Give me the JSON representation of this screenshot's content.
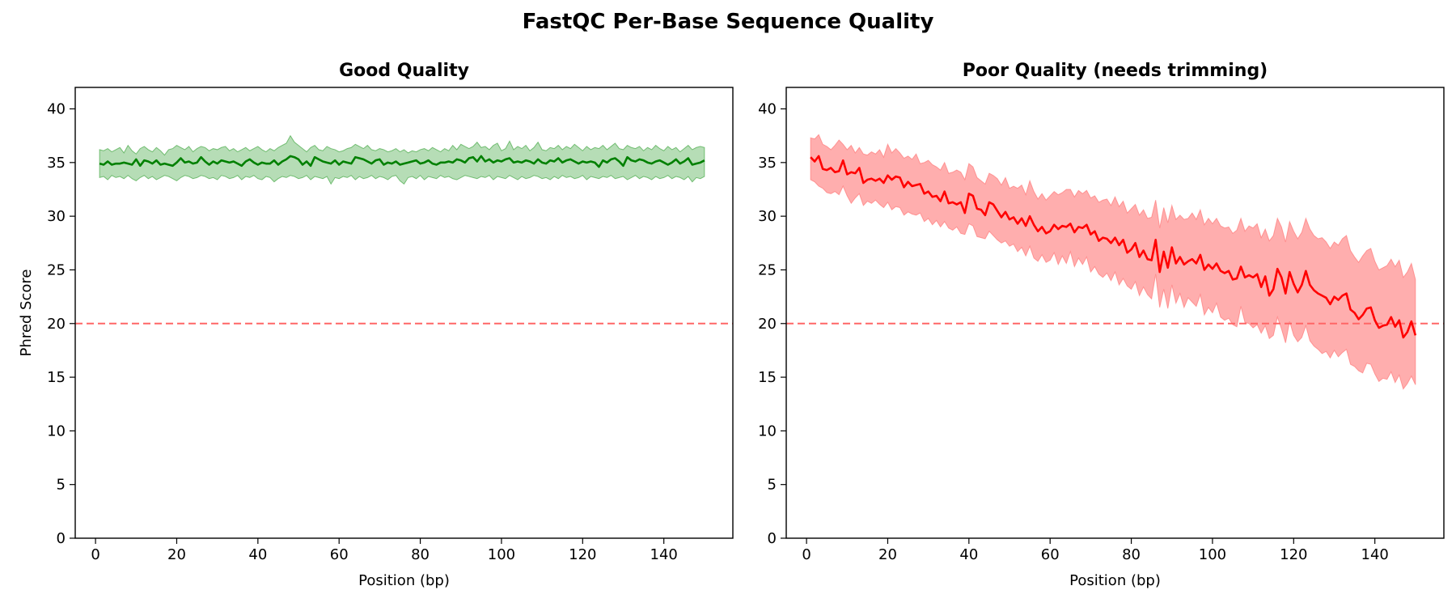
{
  "figure": {
    "suptitle": "FastQC Per-Base Sequence Quality"
  },
  "chart_data": [
    {
      "type": "line",
      "title": "Good Quality",
      "xlabel": "Position (bp)",
      "ylabel": "Phred Score",
      "xlim": [
        -5,
        157
      ],
      "ylim": [
        0,
        42
      ],
      "xticks": [
        0,
        20,
        40,
        60,
        80,
        100,
        120,
        140
      ],
      "yticks": [
        0,
        5,
        10,
        15,
        20,
        25,
        30,
        35,
        40
      ],
      "line_color": "#008000",
      "band_color": "#2e9e2e",
      "band_opacity": 0.35,
      "threshold": {
        "value": 20,
        "color": "#ff6666",
        "style": "dashed"
      },
      "series": [
        {
          "name": "mean",
          "x_start": 1,
          "x_step": 1,
          "values": [
            34.9,
            34.8,
            35.1,
            34.8,
            34.9,
            34.9,
            35.0,
            34.9,
            34.8,
            35.3,
            34.7,
            35.2,
            35.1,
            34.9,
            35.2,
            34.8,
            34.9,
            34.8,
            34.7,
            35.0,
            35.4,
            35.0,
            35.1,
            34.9,
            35.0,
            35.5,
            35.1,
            34.8,
            35.1,
            34.9,
            35.2,
            35.1,
            35.0,
            35.1,
            34.9,
            34.7,
            35.1,
            35.3,
            35.0,
            34.8,
            35.0,
            34.9,
            34.9,
            35.2,
            34.8,
            35.1,
            35.3,
            35.6,
            35.5,
            35.3,
            34.8,
            35.1,
            34.7,
            35.5,
            35.3,
            35.1,
            35.0,
            34.9,
            35.2,
            34.8,
            35.1,
            35.0,
            34.9,
            35.5,
            35.4,
            35.3,
            35.1,
            34.9,
            35.2,
            35.3,
            34.8,
            35.0,
            34.9,
            35.1,
            34.8,
            34.9,
            35.0,
            35.1,
            35.2,
            34.9,
            35.0,
            35.2,
            34.9,
            34.8,
            35.0,
            35.0,
            35.1,
            35.0,
            35.3,
            35.2,
            35.0,
            35.4,
            35.5,
            35.1,
            35.6,
            35.1,
            35.3,
            35.0,
            35.2,
            35.1,
            35.3,
            35.4,
            35.0,
            35.1,
            35.0,
            35.2,
            35.1,
            34.9,
            35.3,
            35.0,
            34.9,
            35.2,
            35.1,
            35.4,
            35.0,
            35.2,
            35.3,
            35.1,
            34.9,
            35.1,
            35.0,
            35.1,
            35.0,
            34.6,
            35.2,
            35.0,
            35.3,
            35.4,
            35.1,
            34.7,
            35.5,
            35.2,
            35.1,
            35.3,
            35.2,
            35.0,
            34.9,
            35.1,
            35.2,
            35.0,
            34.8,
            35.0,
            35.3,
            34.9,
            35.1,
            35.4,
            34.8,
            34.9,
            35.0,
            35.2
          ]
        },
        {
          "name": "lower",
          "x_start": 1,
          "x_step": 1,
          "values": [
            33.6,
            33.7,
            33.4,
            33.8,
            33.6,
            33.7,
            33.5,
            33.8,
            33.5,
            33.3,
            33.6,
            33.8,
            33.5,
            33.7,
            33.4,
            33.6,
            33.8,
            33.7,
            33.5,
            33.3,
            33.6,
            33.8,
            33.7,
            33.5,
            33.6,
            33.8,
            33.7,
            33.5,
            33.6,
            33.4,
            33.8,
            33.7,
            33.5,
            33.6,
            33.8,
            33.4,
            33.7,
            33.6,
            33.8,
            33.5,
            33.4,
            33.7,
            33.6,
            33.2,
            33.5,
            33.7,
            33.6,
            33.8,
            33.7,
            33.5,
            33.6,
            33.8,
            33.4,
            33.7,
            33.6,
            33.5,
            33.7,
            33.0,
            33.6,
            33.5,
            33.7,
            33.6,
            33.8,
            33.4,
            33.7,
            33.5,
            33.6,
            33.8,
            33.5,
            33.7,
            33.6,
            33.4,
            33.7,
            33.8,
            33.3,
            33.0,
            33.6,
            33.7,
            33.5,
            33.8,
            33.4,
            33.7,
            33.6,
            33.5,
            33.8,
            33.6,
            33.7,
            33.5,
            33.4,
            33.6,
            33.8,
            33.7,
            33.6,
            33.5,
            33.7,
            33.6,
            33.8,
            33.4,
            33.7,
            33.6,
            33.5,
            33.8,
            33.6,
            33.4,
            33.7,
            33.5,
            33.6,
            33.8,
            33.7,
            33.5,
            33.6,
            33.4,
            33.7,
            33.5,
            33.8,
            33.6,
            33.7,
            33.5,
            33.6,
            33.8,
            33.4,
            33.7,
            33.6,
            33.5,
            33.7,
            33.6,
            33.8,
            33.5,
            33.6,
            33.7,
            33.4,
            33.6,
            33.8,
            33.5,
            33.7,
            33.6,
            33.4,
            33.7,
            33.5,
            33.6,
            33.8,
            33.5,
            33.7,
            33.6,
            33.4,
            33.7,
            33.2,
            33.6,
            33.5,
            33.7
          ]
        },
        {
          "name": "upper",
          "x_start": 1,
          "x_step": 1,
          "values": [
            36.2,
            36.1,
            36.3,
            36.0,
            36.2,
            36.4,
            35.9,
            36.6,
            36.1,
            35.8,
            36.3,
            36.5,
            36.2,
            36.0,
            36.4,
            36.1,
            35.7,
            36.2,
            36.3,
            36.6,
            36.4,
            36.2,
            36.5,
            36.0,
            36.3,
            36.5,
            36.4,
            36.1,
            36.3,
            36.2,
            36.4,
            36.5,
            36.1,
            36.3,
            36.0,
            36.2,
            36.4,
            36.1,
            36.3,
            36.5,
            36.2,
            36.0,
            36.3,
            36.1,
            36.4,
            36.6,
            36.8,
            37.5,
            36.9,
            36.6,
            36.3,
            36.0,
            36.4,
            36.6,
            36.2,
            36.1,
            36.5,
            36.3,
            36.2,
            36.0,
            36.1,
            36.3,
            36.4,
            36.7,
            36.5,
            36.3,
            36.6,
            36.2,
            36.1,
            36.3,
            36.2,
            36.0,
            36.1,
            36.3,
            36.0,
            36.2,
            35.9,
            36.1,
            36.0,
            36.2,
            36.3,
            36.1,
            36.4,
            36.2,
            36.0,
            36.3,
            36.1,
            36.6,
            36.2,
            36.7,
            36.5,
            36.3,
            36.5,
            36.9,
            36.4,
            36.5,
            36.2,
            36.6,
            36.8,
            36.1,
            36.3,
            37.0,
            36.2,
            36.5,
            36.3,
            36.6,
            36.1,
            36.4,
            36.9,
            36.2,
            36.1,
            36.4,
            36.3,
            36.6,
            36.2,
            36.5,
            36.3,
            36.7,
            36.4,
            36.1,
            36.5,
            36.2,
            36.4,
            36.3,
            36.6,
            36.2,
            36.5,
            36.8,
            36.3,
            36.2,
            36.6,
            36.4,
            36.3,
            36.5,
            36.1,
            36.4,
            36.2,
            36.6,
            36.3,
            36.1,
            36.5,
            36.2,
            36.4,
            36.0,
            36.3,
            36.6,
            36.2,
            36.4,
            36.5,
            36.4
          ]
        }
      ]
    },
    {
      "type": "line",
      "title": "Poor Quality (needs trimming)",
      "xlabel": "Position (bp)",
      "ylabel": "",
      "xlim": [
        -5,
        157
      ],
      "ylim": [
        0,
        42
      ],
      "xticks": [
        0,
        20,
        40,
        60,
        80,
        100,
        120,
        140
      ],
      "yticks": [
        0,
        5,
        10,
        15,
        20,
        25,
        30,
        35,
        40
      ],
      "line_color": "#ff0000",
      "band_color": "#ff6b6b",
      "band_opacity": 0.55,
      "threshold": {
        "value": 20,
        "color": "#ff6666",
        "style": "dashed"
      },
      "series": [
        {
          "name": "mean",
          "x_start": 1,
          "x_step": 1,
          "values": [
            35.5,
            35.1,
            35.6,
            34.4,
            34.3,
            34.5,
            34.1,
            34.2,
            35.2,
            33.9,
            34.1,
            34.0,
            34.5,
            33.1,
            33.4,
            33.5,
            33.3,
            33.5,
            33.1,
            33.8,
            33.4,
            33.7,
            33.6,
            32.7,
            33.2,
            32.8,
            32.9,
            33.0,
            32.1,
            32.3,
            31.8,
            31.9,
            31.4,
            32.3,
            31.2,
            31.3,
            31.1,
            31.3,
            30.3,
            32.1,
            31.9,
            30.7,
            30.6,
            30.1,
            31.3,
            31.1,
            30.5,
            29.9,
            30.4,
            29.7,
            29.9,
            29.3,
            29.8,
            29.1,
            30.0,
            29.2,
            28.6,
            29.0,
            28.4,
            28.6,
            29.2,
            28.8,
            29.1,
            29.0,
            29.3,
            28.5,
            29.0,
            28.9,
            29.2,
            28.3,
            28.6,
            27.7,
            28.0,
            27.9,
            27.5,
            28.0,
            27.3,
            27.8,
            26.6,
            26.9,
            27.5,
            26.2,
            26.8,
            26.0,
            25.9,
            27.8,
            24.8,
            26.7,
            25.2,
            27.1,
            25.6,
            26.2,
            25.5,
            25.8,
            26.0,
            25.6,
            26.4,
            25.0,
            25.5,
            25.1,
            25.6,
            24.9,
            24.7,
            24.9,
            24.1,
            24.2,
            25.3,
            24.3,
            24.5,
            24.3,
            24.6,
            23.4,
            24.4,
            22.6,
            23.2,
            25.1,
            24.3,
            22.8,
            24.8,
            23.7,
            22.9,
            23.6,
            24.9,
            23.6,
            23.1,
            22.8,
            22.6,
            22.4,
            21.8,
            22.5,
            22.2,
            22.6,
            22.8,
            21.3,
            21.0,
            20.4,
            20.8,
            21.4,
            21.5,
            20.3,
            19.6,
            19.8,
            19.9,
            20.6,
            19.7,
            20.3,
            18.7,
            19.2,
            20.2,
            18.9
          ]
        },
        {
          "name": "lower",
          "x_start": 1,
          "x_step": 1,
          "values": [
            33.4,
            33.2,
            32.8,
            32.6,
            32.2,
            32.1,
            32.3,
            32.0,
            32.8,
            31.9,
            31.2,
            31.7,
            32.1,
            31.0,
            31.4,
            31.2,
            31.5,
            31.1,
            30.8,
            31.3,
            30.6,
            30.9,
            30.8,
            30.1,
            30.4,
            30.2,
            30.1,
            30.3,
            29.5,
            29.8,
            29.2,
            29.6,
            29.0,
            29.5,
            28.9,
            28.7,
            29.0,
            28.4,
            28.3,
            29.3,
            29.1,
            28.1,
            28.0,
            27.9,
            28.6,
            28.2,
            27.8,
            27.5,
            27.7,
            27.2,
            27.4,
            26.7,
            27.1,
            26.3,
            27.2,
            26.1,
            25.8,
            26.4,
            25.7,
            25.9,
            26.6,
            25.5,
            26.3,
            25.6,
            26.7,
            25.3,
            26.1,
            25.5,
            26.2,
            24.8,
            25.3,
            24.6,
            24.3,
            24.7,
            24.0,
            24.8,
            23.6,
            24.2,
            23.5,
            23.2,
            23.9,
            22.6,
            23.4,
            22.7,
            22.3,
            24.6,
            21.5,
            23.2,
            21.4,
            23.6,
            21.9,
            22.8,
            21.5,
            22.4,
            22.0,
            21.6,
            22.7,
            20.8,
            21.5,
            21.0,
            21.9,
            20.6,
            20.3,
            20.5,
            19.9,
            19.7,
            21.6,
            20.1,
            20.0,
            19.6,
            19.9,
            19.1,
            19.8,
            18.6,
            18.9,
            20.6,
            19.5,
            18.2,
            20.2,
            18.9,
            18.3,
            18.7,
            19.8,
            18.4,
            17.9,
            17.6,
            17.2,
            17.4,
            16.8,
            17.5,
            16.9,
            17.3,
            17.6,
            16.2,
            16.0,
            15.6,
            15.4,
            16.3,
            16.2,
            15.3,
            14.6,
            14.9,
            14.8,
            15.5,
            14.5,
            15.2,
            13.9,
            14.4,
            15.1,
            14.3
          ]
        },
        {
          "name": "upper",
          "x_start": 1,
          "x_step": 1,
          "values": [
            37.3,
            37.2,
            37.6,
            36.7,
            36.5,
            36.2,
            36.6,
            37.1,
            36.7,
            36.2,
            36.6,
            35.9,
            36.4,
            35.8,
            35.7,
            36.0,
            35.8,
            36.2,
            35.5,
            36.7,
            35.9,
            36.3,
            35.9,
            35.4,
            35.6,
            35.3,
            35.8,
            34.9,
            35.0,
            35.2,
            34.8,
            34.6,
            34.3,
            35.0,
            34.0,
            34.1,
            34.3,
            34.1,
            33.4,
            34.9,
            34.6,
            33.6,
            33.3,
            33.0,
            34.0,
            33.8,
            33.5,
            32.9,
            33.6,
            32.6,
            32.8,
            32.6,
            32.9,
            32.0,
            33.3,
            32.3,
            31.6,
            32.1,
            31.5,
            31.9,
            32.3,
            32.0,
            32.2,
            32.5,
            32.5,
            31.8,
            32.4,
            32.1,
            32.4,
            31.7,
            31.9,
            31.3,
            31.5,
            31.6,
            31.0,
            31.8,
            30.9,
            31.4,
            30.3,
            30.7,
            31.1,
            30.1,
            30.6,
            29.8,
            29.9,
            31.5,
            28.9,
            30.8,
            29.4,
            31.0,
            29.7,
            30.1,
            29.7,
            29.8,
            30.3,
            29.7,
            30.6,
            29.2,
            29.8,
            29.3,
            29.8,
            29.1,
            28.9,
            29.0,
            28.4,
            28.7,
            29.8,
            28.6,
            29.1,
            28.9,
            29.3,
            28.0,
            28.8,
            27.7,
            28.2,
            29.8,
            29.0,
            27.6,
            29.5,
            28.6,
            27.9,
            28.5,
            29.8,
            28.8,
            28.2,
            27.9,
            28.0,
            27.6,
            27.0,
            27.6,
            27.3,
            27.9,
            28.2,
            26.8,
            26.2,
            25.7,
            26.3,
            26.8,
            27.0,
            25.8,
            25.0,
            25.2,
            25.4,
            26.0,
            25.3,
            25.9,
            24.3,
            24.8,
            25.6,
            24.1
          ]
        }
      ]
    }
  ]
}
